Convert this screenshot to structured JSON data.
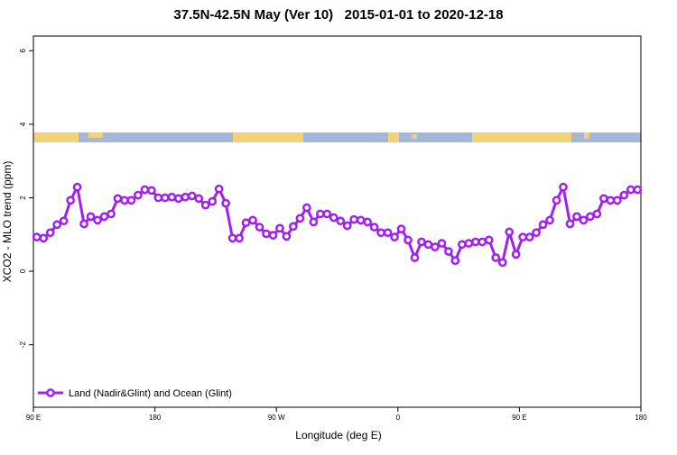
{
  "chart_data": {
    "type": "line",
    "title": "37.5N-42.5N May (Ver 10)   2015-01-01 to 2020-12-18",
    "x_label": "Longitude (deg E)",
    "y_label": "XCO2 - MLO trend (ppm)",
    "xlim": [
      90,
      540
    ],
    "ylim": [
      -3.7,
      6.4
    ],
    "xticks": [
      {
        "value": 90,
        "label": "90 E"
      },
      {
        "value": 180,
        "label": "180"
      },
      {
        "value": 270,
        "label": "90 W"
      },
      {
        "value": 360,
        "label": "0"
      },
      {
        "value": 450,
        "label": "90 E"
      },
      {
        "value": 540,
        "label": "180"
      }
    ],
    "yticks": [
      -2,
      0,
      2,
      4,
      6
    ],
    "legend_position": "bottom-left",
    "x": [
      92.5,
      97.5,
      102.5,
      107.5,
      112.5,
      117.5,
      122.5,
      127.5,
      132.5,
      137.5,
      142.5,
      147.5,
      152.5,
      157.5,
      162.5,
      167.5,
      172.5,
      177.5,
      182.5,
      187.5,
      192.5,
      197.5,
      202.5,
      207.5,
      212.5,
      217.5,
      222.5,
      227.5,
      232.5,
      237.5,
      242.5,
      247.5,
      252.5,
      257.5,
      262.5,
      267.5,
      272.5,
      277.5,
      282.5,
      287.5,
      292.5,
      297.5,
      302.5,
      307.5,
      312.5,
      317.5,
      322.5,
      327.5,
      332.5,
      337.5,
      342.5,
      347.5,
      352.5,
      357.5,
      362.5,
      367.5,
      372.5,
      377.5,
      382.5,
      387.5,
      392.5,
      397.5,
      402.5,
      407.5,
      412.5,
      417.5,
      422.5,
      427.5,
      432.5,
      437.5,
      442.5,
      447.5,
      452.5,
      457.5,
      462.5,
      467.5,
      472.5,
      477.5,
      482.5,
      487.5,
      492.5,
      497.5,
      502.5,
      507.5,
      512.5,
      517.5,
      522.5,
      527.5,
      532.5,
      537.5
    ],
    "series": [
      {
        "name": "Land (Nadir&Glint) and Ocean (Glint)",
        "color": "#a020f0",
        "values": [
          0.93,
          0.9,
          1.05,
          1.27,
          1.37,
          1.93,
          2.29,
          1.29,
          1.49,
          1.39,
          1.49,
          1.56,
          1.98,
          1.93,
          1.93,
          2.07,
          2.22,
          2.2,
          2.0,
          2.0,
          2.02,
          1.98,
          2.02,
          2.05,
          1.98,
          1.8,
          1.9,
          2.24,
          1.85,
          0.9,
          0.9,
          1.32,
          1.39,
          1.2,
          1.02,
          0.98,
          1.17,
          0.95,
          1.22,
          1.44,
          1.73,
          1.34,
          1.56,
          1.56,
          1.46,
          1.37,
          1.24,
          1.41,
          1.39,
          1.34,
          1.2,
          1.05,
          1.05,
          0.93,
          1.15,
          0.85,
          0.37,
          0.8,
          0.73,
          0.66,
          0.76,
          0.54,
          0.29,
          0.73,
          0.76,
          0.8,
          0.8,
          0.85,
          0.37,
          0.24,
          1.07,
          0.46,
          0.93,
          0.93,
          1.05,
          1.27,
          1.39,
          1.93,
          2.29,
          1.29,
          1.49,
          1.39,
          1.49,
          1.56,
          1.98,
          1.93,
          1.93,
          2.07,
          2.22,
          2.22
        ]
      }
    ]
  }
}
